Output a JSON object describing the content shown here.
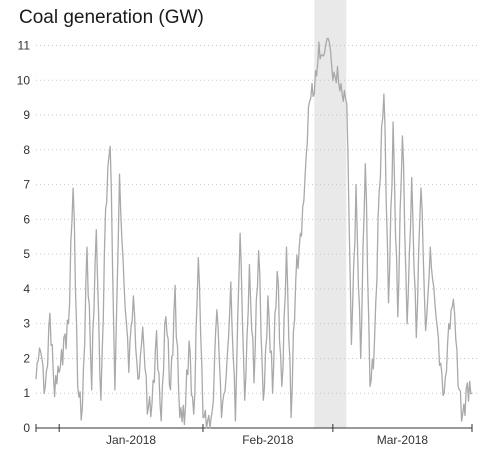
{
  "chart_data": {
    "type": "line",
    "title": "Coal generation (GW)",
    "xlabel": "",
    "ylabel": "",
    "ylim": [
      0,
      11
    ],
    "grid": "horizontal dotted",
    "line_color": "#a9a9a9",
    "shade_color": "#e9e9e9",
    "x_tick_labels": [
      "Jan-2018",
      "Feb-2018",
      "Mar-2018"
    ],
    "x_range": [
      "2017-12-27",
      "2018-03-31"
    ],
    "y_ticks": [
      0,
      1,
      2,
      3,
      4,
      5,
      6,
      7,
      8,
      9,
      10,
      11
    ],
    "shaded_period": [
      "2018-02-25",
      "2018-03-03"
    ],
    "series": [
      {
        "resolution": "approx. every 6 hours",
        "points": [
          [
            "2017-12-27",
            1.4
          ],
          [
            "2017-12-28",
            2.2
          ],
          [
            "2017-12-29",
            1.2
          ],
          [
            "2017-12-30",
            3.3
          ],
          [
            "2017-12-31",
            0.9
          ],
          [
            "2018-01-01",
            1.6
          ],
          [
            "2018-01-02",
            2.6
          ],
          [
            "2018-01-03",
            3.0
          ],
          [
            "2018-01-04",
            6.9
          ],
          [
            "2018-01-05",
            1.2
          ],
          [
            "2018-01-06",
            0.6
          ],
          [
            "2018-01-07",
            5.2
          ],
          [
            "2018-01-08",
            1.1
          ],
          [
            "2018-01-09",
            5.7
          ],
          [
            "2018-01-10",
            0.8
          ],
          [
            "2018-01-11",
            6.3
          ],
          [
            "2018-01-12",
            8.1
          ],
          [
            "2018-01-13",
            1.1
          ],
          [
            "2018-01-14",
            7.3
          ],
          [
            "2018-01-15",
            4.1
          ],
          [
            "2018-01-16",
            1.6
          ],
          [
            "2018-01-17",
            3.8
          ],
          [
            "2018-01-18",
            1.4
          ],
          [
            "2018-01-19",
            2.9
          ],
          [
            "2018-01-20",
            0.4
          ],
          [
            "2018-01-21",
            0.7
          ],
          [
            "2018-01-22",
            2.8
          ],
          [
            "2018-01-23",
            0.2
          ],
          [
            "2018-01-24",
            3.2
          ],
          [
            "2018-01-25",
            1.1
          ],
          [
            "2018-01-26",
            4.1
          ],
          [
            "2018-01-27",
            0.3
          ],
          [
            "2018-01-28",
            0.1
          ],
          [
            "2018-01-29",
            2.5
          ],
          [
            "2018-01-30",
            0.4
          ],
          [
            "2018-01-31",
            4.9
          ],
          [
            "2018-02-01",
            0.3
          ],
          [
            "2018-02-02",
            0.2
          ],
          [
            "2018-02-03",
            0.5
          ],
          [
            "2018-02-04",
            3.4
          ],
          [
            "2018-02-05",
            0.3
          ],
          [
            "2018-02-06",
            1.5
          ],
          [
            "2018-02-07",
            4.2
          ],
          [
            "2018-02-08",
            0.2
          ],
          [
            "2018-02-09",
            5.6
          ],
          [
            "2018-02-10",
            0.8
          ],
          [
            "2018-02-11",
            4.7
          ],
          [
            "2018-02-12",
            1.3
          ],
          [
            "2018-02-13",
            5.1
          ],
          [
            "2018-02-14",
            0.8
          ],
          [
            "2018-02-15",
            3.8
          ],
          [
            "2018-02-16",
            1.0
          ],
          [
            "2018-02-17",
            4.5
          ],
          [
            "2018-02-18",
            1.2
          ],
          [
            "2018-02-19",
            5.2
          ],
          [
            "2018-02-20",
            0.3
          ],
          [
            "2018-02-21",
            4.2
          ],
          [
            "2018-02-22",
            5.6
          ],
          [
            "2018-02-23",
            7.2
          ],
          [
            "2018-02-24",
            9.4
          ],
          [
            "2018-02-25",
            9.6
          ],
          [
            "2018-02-26",
            11.1
          ],
          [
            "2018-02-27",
            10.7
          ],
          [
            "2018-02-28",
            11.2
          ],
          [
            "2018-03-01",
            10.0
          ],
          [
            "2018-03-02",
            10.4
          ],
          [
            "2018-03-03",
            9.6
          ],
          [
            "2018-03-04",
            9.3
          ],
          [
            "2018-03-05",
            2.4
          ],
          [
            "2018-03-06",
            7.0
          ],
          [
            "2018-03-07",
            2.0
          ],
          [
            "2018-03-08",
            7.6
          ],
          [
            "2018-03-09",
            1.2
          ],
          [
            "2018-03-10",
            2.6
          ],
          [
            "2018-03-11",
            6.8
          ],
          [
            "2018-03-12",
            9.6
          ],
          [
            "2018-03-13",
            3.6
          ],
          [
            "2018-03-14",
            8.8
          ],
          [
            "2018-03-15",
            3.2
          ],
          [
            "2018-03-16",
            8.4
          ],
          [
            "2018-03-17",
            3.0
          ],
          [
            "2018-03-18",
            7.2
          ],
          [
            "2018-03-19",
            2.6
          ],
          [
            "2018-03-20",
            6.9
          ],
          [
            "2018-03-21",
            2.8
          ],
          [
            "2018-03-22",
            5.2
          ],
          [
            "2018-03-23",
            3.6
          ],
          [
            "2018-03-24",
            1.8
          ],
          [
            "2018-03-25",
            1.0
          ],
          [
            "2018-03-26",
            3.0
          ],
          [
            "2018-03-27",
            3.7
          ],
          [
            "2018-03-28",
            1.2
          ],
          [
            "2018-03-29",
            0.4
          ],
          [
            "2018-03-30",
            1.3
          ],
          [
            "2018-03-31",
            1.0
          ]
        ]
      }
    ]
  }
}
